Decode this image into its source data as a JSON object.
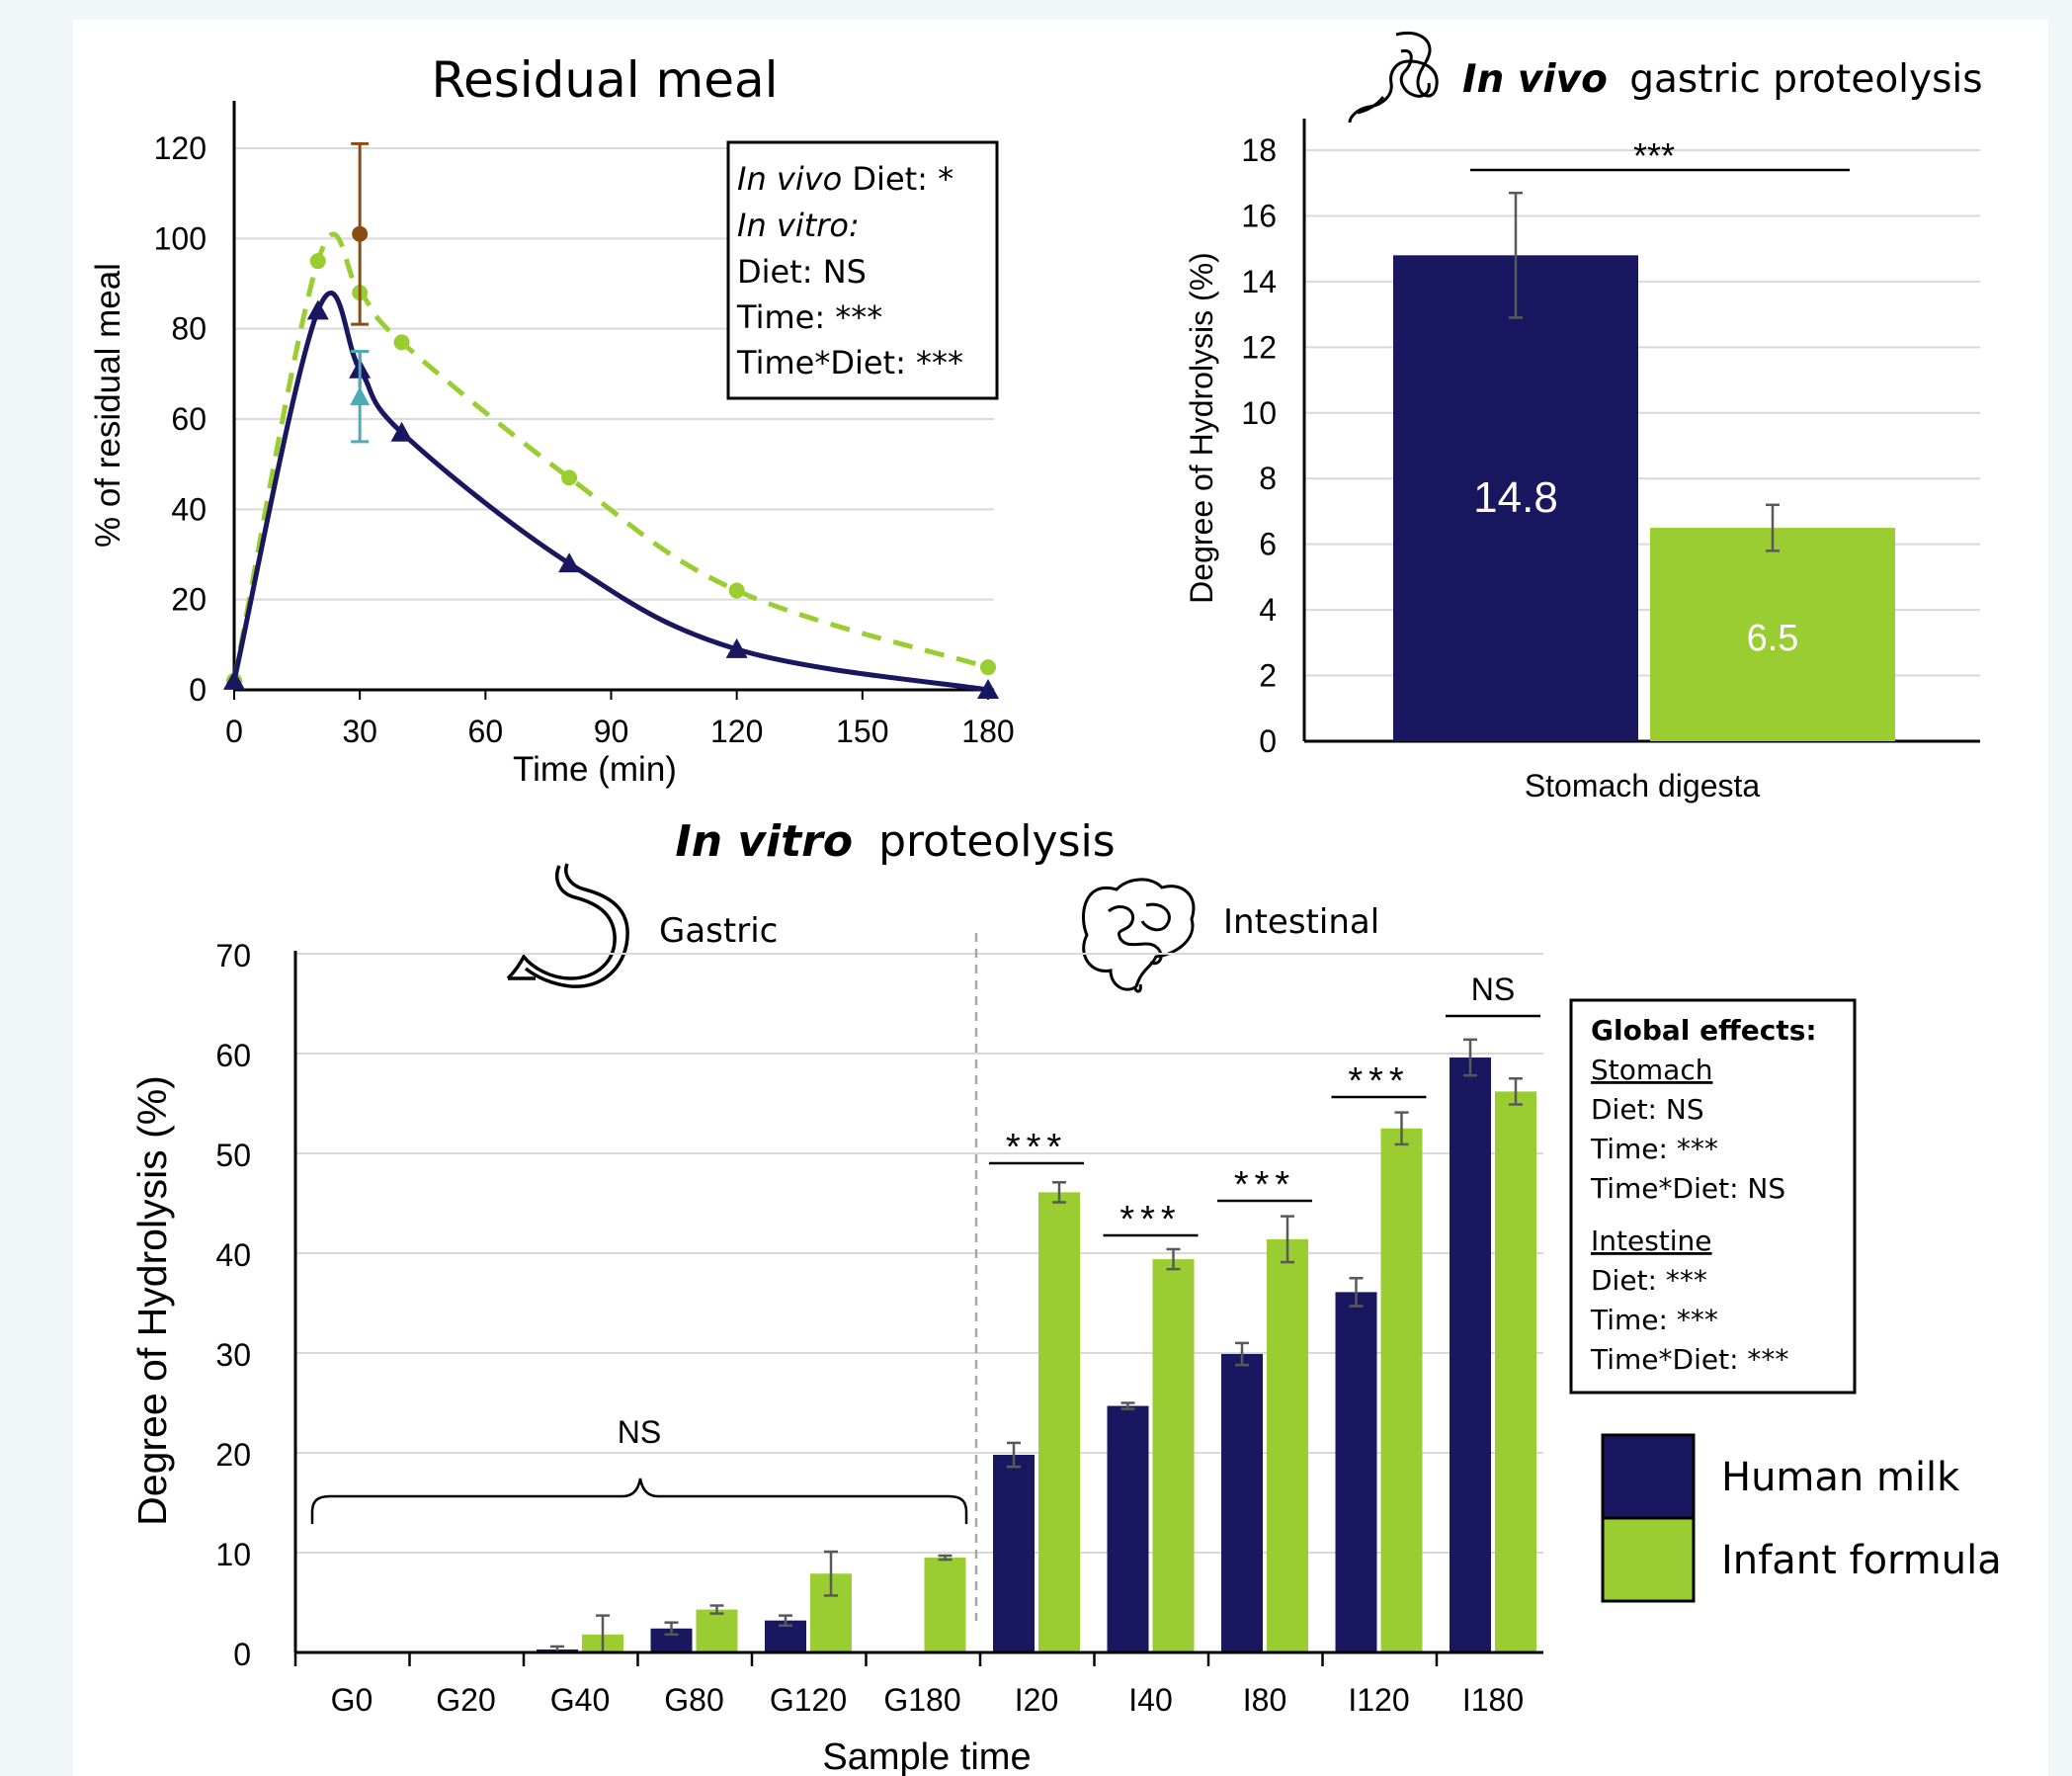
{
  "colors": {
    "human_milk": "#191760",
    "infant_formula": "#9acd32",
    "invitro_30min": "#4bacb8",
    "invivo_30min": "#8b4c12",
    "grid": "#d9d9d9"
  },
  "chart_data": [
    {
      "id": "residual",
      "type": "line",
      "title": "Residual meal",
      "xlabel": "Time (min)",
      "ylabel": "% of residual meal",
      "xlim": [
        0,
        180
      ],
      "ylim": [
        0,
        120
      ],
      "xticks": [
        0,
        30,
        60,
        90,
        120,
        150,
        180
      ],
      "yticks": [
        0,
        20,
        40,
        60,
        80,
        100,
        120
      ],
      "grid": "horizontal",
      "series": [
        {
          "x": [
            0,
            20,
            30,
            40,
            80,
            120,
            180
          ],
          "y": [
            2,
            84,
            71,
            57,
            28,
            9,
            0
          ],
          "err": [
            0,
            0,
            4,
            0,
            0,
            0,
            0
          ]
        },
        {
          "x": [
            0,
            20,
            30,
            40,
            80,
            120,
            180
          ],
          "y": [
            2,
            95,
            88,
            77,
            47,
            22,
            5
          ],
          "err": [
            0,
            0,
            0,
            0,
            0,
            0,
            0
          ]
        },
        {
          "x": [
            30
          ],
          "y": [
            65
          ],
          "err": [
            10
          ]
        },
        {
          "x": [
            30
          ],
          "y": [
            101
          ],
          "err": [
            20
          ]
        }
      ],
      "stats_box": [
        "In vivo Diet: *",
        "In vitro:",
        "Diet: NS",
        "Time: ***",
        "Time*Diet: ***"
      ]
    },
    {
      "id": "invivo",
      "type": "bar",
      "title": "In vivo gastric proteolysis",
      "title_bold": "In vivo",
      "title_rest": "gastric proteolysis",
      "xlabel": "Stomach digesta",
      "ylabel": "Degree of Hydrolysis (%)",
      "ylim": [
        0,
        18
      ],
      "yticks": [
        0,
        2,
        4,
        6,
        8,
        10,
        12,
        14,
        16,
        18
      ],
      "grid": "horizontal",
      "series": [
        {
          "values": [
            14.8
          ],
          "err": [
            1.9
          ],
          "label": "14.8"
        },
        {
          "values": [
            6.5
          ],
          "err": [
            0.7
          ],
          "label": "6.5"
        }
      ],
      "significance": "***"
    },
    {
      "id": "invitro",
      "type": "bar",
      "title": "In vitro proteolysis",
      "title_bold": "In vitro",
      "title_rest": "proteolysis",
      "xlabel": "Sample time",
      "ylabel": "Degree of Hydrolysis (%)",
      "ylim": [
        0,
        70
      ],
      "yticks": [
        0,
        10,
        20,
        30,
        40,
        50,
        60,
        70
      ],
      "grid": "horizontal",
      "categories": [
        "G0",
        "G20",
        "G40",
        "G80",
        "G120",
        "G180",
        "I20",
        "I40",
        "I80",
        "I120",
        "I180"
      ],
      "series": [
        {
          "name": "Human milk",
          "values": [
            0,
            0,
            0.3,
            2.4,
            3.2,
            0,
            19.8,
            24.7,
            29.9,
            36.1,
            59.6
          ],
          "err": [
            0,
            0,
            0.3,
            0.6,
            0.5,
            0,
            1.2,
            0.3,
            1.1,
            1.4,
            1.8
          ]
        },
        {
          "name": "Infant formula",
          "values": [
            0,
            0,
            1.8,
            4.3,
            7.9,
            9.5,
            46.1,
            39.4,
            41.4,
            52.5,
            56.2
          ],
          "err": [
            0,
            0,
            1.9,
            0.4,
            2.2,
            0.2,
            1.0,
            1.0,
            2.3,
            1.6,
            1.3
          ]
        }
      ],
      "phase_labels": [
        "Gastric",
        "Intestinal"
      ],
      "gastric_bracket_label": "NS",
      "significance": [
        {
          "category": "I20",
          "text": "***"
        },
        {
          "category": "I40",
          "text": "***"
        },
        {
          "category": "I80",
          "text": "***"
        },
        {
          "category": "I120",
          "text": "***"
        },
        {
          "category": "I180",
          "text": "NS"
        }
      ],
      "global_effects": {
        "title": "Global effects:",
        "stomach_heading": "Stomach",
        "stomach": [
          "Diet: NS",
          "Time: ***",
          "Time*Diet: NS"
        ],
        "intestine_heading": "Intestine",
        "intestine": [
          "Diet: ***",
          "Time: ***",
          "Time*Diet: ***"
        ]
      },
      "legend": [
        "Human milk",
        "Infant formula"
      ]
    }
  ]
}
